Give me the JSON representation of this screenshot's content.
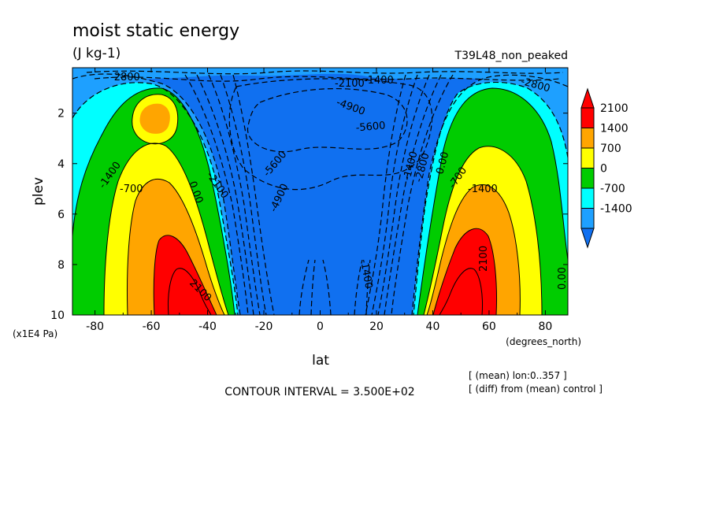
{
  "chart_data": {
    "type": "heatmap",
    "subtype": "filled contour (latitude-pressure cross section)",
    "title": "moist static energy",
    "units": "(J kg-1)",
    "run_label": "T39L48_non_peaked",
    "xlabel": "lat",
    "x_units": "(degrees_north)",
    "ylabel": "plev",
    "y_units": "(x1E4 Pa)",
    "xlim": [
      -88,
      88
    ],
    "ylim": [
      10,
      0.2
    ],
    "x_ticks": [
      "-80",
      "-60",
      "-40",
      "-20",
      "0",
      "20",
      "40",
      "60",
      "80"
    ],
    "y_ticks": [
      "2",
      "4",
      "6",
      "8",
      "10"
    ],
    "colorbar": {
      "labels": [
        "2100",
        "1400",
        "700",
        "0",
        "-700",
        "-1400"
      ],
      "levels": [
        -2100,
        -1400,
        -700,
        0,
        700,
        1400,
        2100
      ],
      "colors": [
        "#1070f0",
        "#1ea0ff",
        "#00ffff",
        "#00cc00",
        "#ffff00",
        "#ffa500",
        "#ff0000",
        "#ff0000"
      ]
    },
    "field_summary": {
      "tropics_value_range": [
        -6000,
        -4900
      ],
      "midlatitude_maxima": [
        {
          "lat": -48,
          "plev": 9.5,
          "approx_value": 2800
        },
        {
          "lat": 50,
          "plev": 9.5,
          "approx_value": 2800
        }
      ],
      "upper_level_secondary_maxima": [
        {
          "lat": -62,
          "plev": 2.0,
          "approx_value": 1400
        }
      ]
    },
    "contour_labels": [
      "-2800",
      "-2100",
      "-1400",
      "-4900",
      "-5600",
      "-2800",
      "-2100",
      "-1400",
      "-700",
      "0.00",
      "-5600",
      "-4900",
      "-1400",
      "2100",
      "0.00",
      "-1400",
      "-2800",
      "-700",
      "-1400",
      "2100",
      "0.00"
    ],
    "contour_interval_text": "CONTOUR INTERVAL = 3.500E+02",
    "footnotes": [
      "[ (mean) lon:0..357 ]",
      "[ (diff) from (mean) control ]"
    ]
  }
}
